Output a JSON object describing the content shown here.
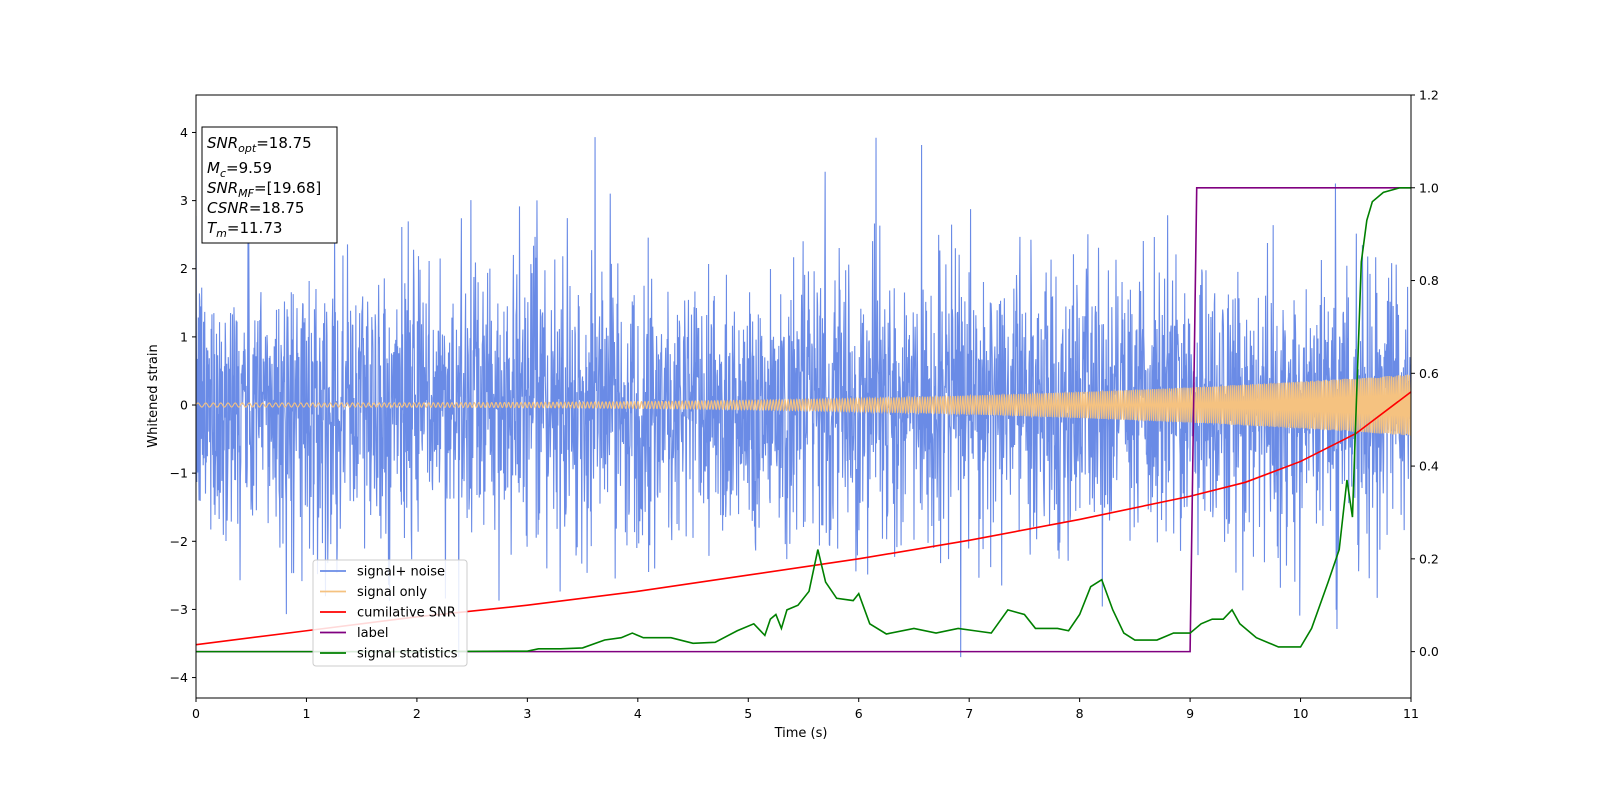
{
  "chart_data": {
    "type": "line",
    "xlabel": "Time (s)",
    "ylabel": "Whitened strain",
    "xlim": [
      0,
      11
    ],
    "ylim_left": [
      -4.3,
      4.55
    ],
    "ylim_right": [
      -0.1,
      1.2
    ],
    "x_ticks": [
      0,
      1,
      2,
      3,
      4,
      5,
      6,
      7,
      8,
      9,
      10,
      11
    ],
    "x_tick_labels": [
      "0",
      "1",
      "2",
      "3",
      "4",
      "5",
      "6",
      "7",
      "8",
      "9",
      "10",
      "11"
    ],
    "y_left_ticks": [
      4,
      3,
      2,
      1,
      0,
      -1,
      -2,
      -3,
      -4
    ],
    "y_left_tick_labels": [
      "4",
      "3",
      "2",
      "1",
      "0",
      "−1",
      "−2",
      "−3",
      "−4"
    ],
    "y_right_ticks": [
      1.2,
      1.0,
      0.8,
      0.6,
      0.4,
      0.2,
      0.0
    ],
    "y_right_tick_labels": [
      "1.2",
      "1.0",
      "0.8",
      "0.6",
      "0.4",
      "0.2",
      "0.0"
    ],
    "grid": false,
    "legend_position": "lower-left",
    "series": [
      {
        "name": "signal+ noise",
        "axis": "left",
        "color": "#6a8be6",
        "kind": "noise",
        "amplitude_std": 1.0,
        "range": [
          -3.7,
          4.2
        ]
      },
      {
        "name": "signal only",
        "axis": "left",
        "color": "#f5c280",
        "kind": "chirp",
        "amplitude_start": 0.03,
        "amplitude_end": 0.45
      },
      {
        "name": "cumilative SNR",
        "axis": "right",
        "color": "#ff0000",
        "x": [
          0,
          1,
          2,
          3,
          4,
          5,
          6,
          7,
          8,
          9,
          9.5,
          10,
          10.5,
          11
        ],
        "y": [
          0.015,
          0.045,
          0.075,
          0.1,
          0.13,
          0.165,
          0.2,
          0.24,
          0.285,
          0.335,
          0.365,
          0.41,
          0.47,
          0.56
        ]
      },
      {
        "name": "label",
        "axis": "right",
        "color": "#800080",
        "x": [
          0,
          9.0,
          9.06,
          11
        ],
        "y": [
          0.0,
          0.0,
          1.0,
          1.0
        ]
      },
      {
        "name": "signal statistics",
        "axis": "right",
        "color": "#008000",
        "x": [
          0,
          1,
          2,
          3,
          3.1,
          3.3,
          3.5,
          3.7,
          3.85,
          3.95,
          4.05,
          4.15,
          4.3,
          4.5,
          4.7,
          4.9,
          5.05,
          5.15,
          5.2,
          5.25,
          5.3,
          5.35,
          5.45,
          5.55,
          5.63,
          5.7,
          5.8,
          5.95,
          6.0,
          6.1,
          6.25,
          6.5,
          6.7,
          6.9,
          7.05,
          7.2,
          7.35,
          7.5,
          7.6,
          7.8,
          7.9,
          8.0,
          8.1,
          8.2,
          8.3,
          8.4,
          8.5,
          8.7,
          8.85,
          9.0,
          9.1,
          9.2,
          9.3,
          9.38,
          9.45,
          9.6,
          9.8,
          10.0,
          10.1,
          10.25,
          10.35,
          10.42,
          10.47,
          10.5,
          10.55,
          10.6,
          10.65,
          10.75,
          10.9,
          11
        ],
        "y": [
          0.0,
          0.0,
          0.0,
          0.001,
          0.006,
          0.006,
          0.008,
          0.025,
          0.03,
          0.04,
          0.03,
          0.03,
          0.03,
          0.018,
          0.02,
          0.045,
          0.06,
          0.035,
          0.07,
          0.08,
          0.05,
          0.09,
          0.1,
          0.13,
          0.22,
          0.15,
          0.115,
          0.11,
          0.125,
          0.06,
          0.038,
          0.05,
          0.04,
          0.05,
          0.045,
          0.04,
          0.09,
          0.08,
          0.05,
          0.05,
          0.045,
          0.08,
          0.14,
          0.155,
          0.09,
          0.04,
          0.025,
          0.025,
          0.04,
          0.04,
          0.06,
          0.07,
          0.07,
          0.09,
          0.06,
          0.03,
          0.01,
          0.01,
          0.05,
          0.15,
          0.22,
          0.37,
          0.29,
          0.5,
          0.84,
          0.93,
          0.97,
          0.99,
          1.0,
          1.0
        ]
      }
    ],
    "legend": [
      "signal+ noise",
      "signal only",
      "cumilative SNR",
      "label",
      "signal statistics"
    ],
    "annotation": {
      "lines": [
        {
          "name": "SNR",
          "sub": "opt",
          "value": "=18.75"
        },
        {
          "name": "M",
          "sub": "c",
          "value": "=9.59"
        },
        {
          "name": "SNR",
          "sub": "MF",
          "value": "=[19.68]"
        },
        {
          "name": "CSNR",
          "sub": "",
          "value": "=18.75"
        },
        {
          "name": "T",
          "sub": "m",
          "value": "=11.73"
        }
      ]
    }
  }
}
